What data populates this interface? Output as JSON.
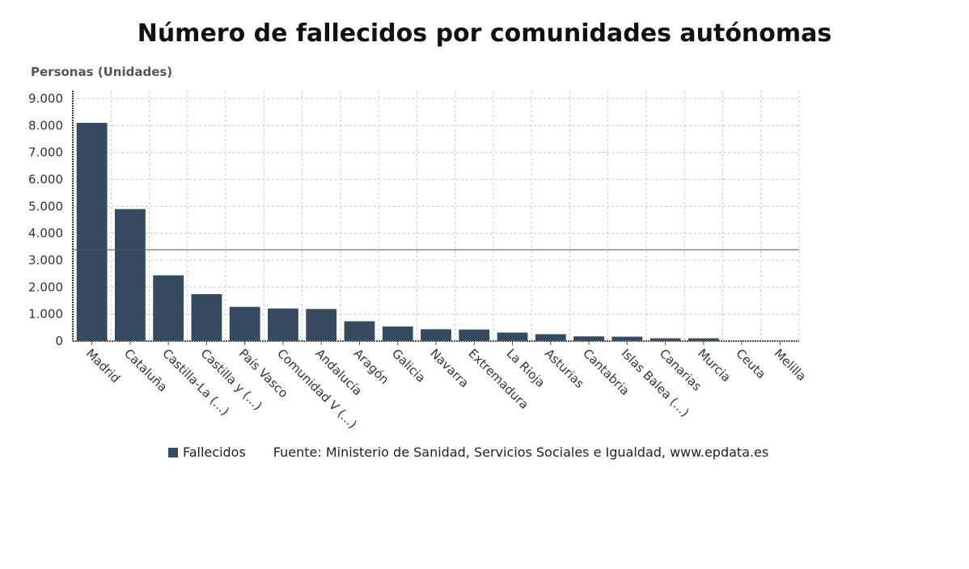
{
  "chart_data": {
    "type": "bar",
    "title": "Número de fallecidos por comunidades autónomas",
    "ylabel": "Personas (Unidades)",
    "xlabel": "",
    "ylim": [
      0,
      9000
    ],
    "yticks": [
      0,
      1000,
      2000,
      3000,
      4000,
      5000,
      6000,
      7000,
      8000,
      9000
    ],
    "ytick_labels": [
      "0",
      "1.000",
      "2.000",
      "3.000",
      "4.000",
      "5.000",
      "6.000",
      "7.000",
      "8.000",
      "9.000"
    ],
    "grid": true,
    "categories": [
      "Madrid",
      "Cataluña",
      "Castilla-La (...)",
      "Castilla y (...)",
      "País Vasco",
      "Comunidad V (...)",
      "Andalucía",
      "Aragón",
      "Galicia",
      "Navarra",
      "Extremadura",
      "La Rioja",
      "Asturias",
      "Cantabria",
      "Islas Balea (...)",
      "Canarias",
      "Murcia",
      "Ceuta",
      "Melilla"
    ],
    "series": [
      {
        "name": "Fallecidos",
        "color": "#344a5f",
        "values": [
          8100,
          4900,
          2440,
          1740,
          1270,
          1210,
          1190,
          735,
          541,
          439,
          429,
          316,
          255,
          173,
          163,
          102,
          102,
          4,
          2
        ]
      }
    ],
    "reference_line": 3390,
    "legend_position": "bottom"
  },
  "source": "Fuente: Ministerio de Sanidad, Servicios Sociales e Igualdad, www.epdata.es"
}
